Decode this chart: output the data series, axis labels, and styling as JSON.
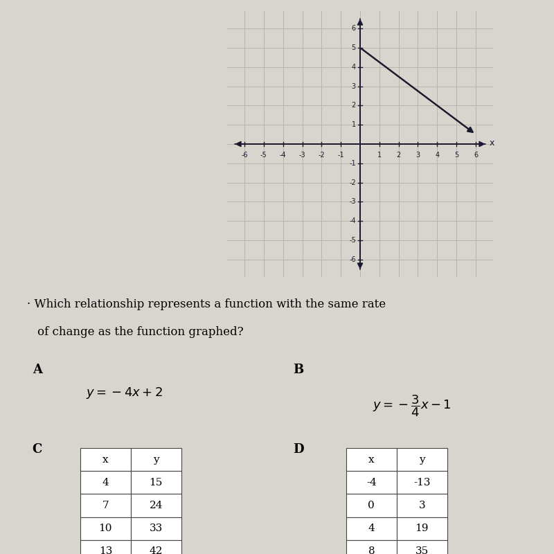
{
  "bg_color": "#d8d4ce",
  "graph_bg": "#d0ccc6",
  "graph": {
    "xlim": [
      -6,
      6
    ],
    "ylim": [
      -6,
      6
    ],
    "grid_color": "#b8b4ae",
    "axis_color": "#1a1a2e",
    "line_x1": 0.0,
    "line_y1": 5.0,
    "line_x2": 6.0,
    "line_y2": 0.5
  },
  "question_line1": "Which relationship represents a function with the same rate",
  "question_line2": "of change as the function graphed?",
  "option_A_label": "A",
  "option_A_eq": "$y = -4x + 2$",
  "option_B_label": "B",
  "option_B_eq": "$y = -\\dfrac{3}{4}x - 1$",
  "option_C_label": "C",
  "option_C_headers": [
    "x",
    "y"
  ],
  "option_C_data": [
    [
      4,
      15
    ],
    [
      7,
      24
    ],
    [
      10,
      33
    ],
    [
      13,
      42
    ]
  ],
  "option_D_label": "D",
  "option_D_headers": [
    "x",
    "y"
  ],
  "option_D_data": [
    [
      -4,
      -13
    ],
    [
      0,
      3
    ],
    [
      4,
      19
    ],
    [
      8,
      35
    ]
  ]
}
